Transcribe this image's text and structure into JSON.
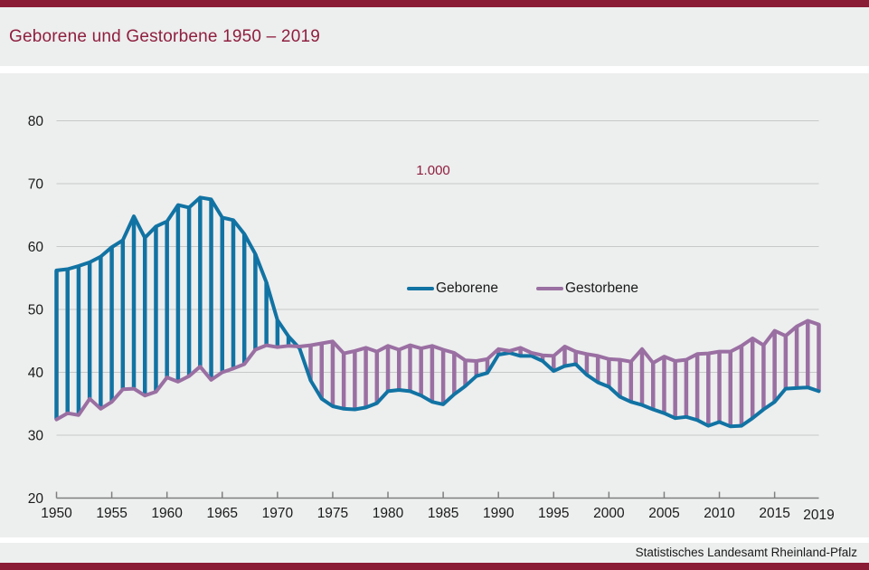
{
  "header": {
    "title": "Geborene und Gestorbene 1950 – 2019"
  },
  "footer": {
    "source": "Statistisches Landesamt Rheinland-Pfalz"
  },
  "colors": {
    "brand": "#8B1C35",
    "title_text": "#8E1F3F",
    "births_line": "#1173A3",
    "deaths_line": "#9A6FA2",
    "panel_bg": "#EDEEEE",
    "grid": "#C7C8C8",
    "axis": "#7F7F7F",
    "tick_text": "#1A1A1A"
  },
  "chart_data": {
    "type": "line",
    "title": "Geborene und Gestorbene 1950 – 2019",
    "unit_label": "1.000",
    "xlabel": "",
    "ylabel": "",
    "ylim": [
      20,
      80
    ],
    "yticks": [
      20,
      30,
      40,
      50,
      60,
      70,
      80
    ],
    "xticks": [
      1950,
      1955,
      1960,
      1965,
      1970,
      1975,
      1980,
      1985,
      1990,
      1995,
      2000,
      2005,
      2010,
      2015
    ],
    "x_end_label": 2019,
    "grid": true,
    "legend_position": "top-center",
    "hatch_between_series": true,
    "x": [
      1950,
      1951,
      1952,
      1953,
      1954,
      1955,
      1956,
      1957,
      1958,
      1959,
      1960,
      1961,
      1962,
      1963,
      1964,
      1965,
      1966,
      1967,
      1968,
      1969,
      1970,
      1971,
      1972,
      1973,
      1974,
      1975,
      1976,
      1977,
      1978,
      1979,
      1980,
      1981,
      1982,
      1983,
      1984,
      1985,
      1986,
      1987,
      1988,
      1989,
      1990,
      1991,
      1992,
      1993,
      1994,
      1995,
      1996,
      1997,
      1998,
      1999,
      2000,
      2001,
      2002,
      2003,
      2004,
      2005,
      2006,
      2007,
      2008,
      2009,
      2010,
      2011,
      2012,
      2013,
      2014,
      2015,
      2016,
      2017,
      2018,
      2019
    ],
    "series": [
      {
        "name": "Geborene",
        "color": "#1173A3",
        "values": [
          56.2,
          56.4,
          56.9,
          57.5,
          58.4,
          59.9,
          61.0,
          64.8,
          61.4,
          63.2,
          64.0,
          66.6,
          66.2,
          67.8,
          67.5,
          64.6,
          64.2,
          62.0,
          58.8,
          54.3,
          48.3,
          45.7,
          43.8,
          38.7,
          35.8,
          34.6,
          34.2,
          34.1,
          34.4,
          35.1,
          37.0,
          37.2,
          37.0,
          36.3,
          35.3,
          34.9,
          36.5,
          37.8,
          39.4,
          39.9,
          42.8,
          43.1,
          42.6,
          42.6,
          41.8,
          40.2,
          41.0,
          41.3,
          39.6,
          38.4,
          37.7,
          36.1,
          35.3,
          34.8,
          34.1,
          33.5,
          32.7,
          32.9,
          32.4,
          31.5,
          32.1,
          31.4,
          31.5,
          32.7,
          34.1,
          35.3,
          37.4,
          37.5,
          37.6,
          37.0
        ]
      },
      {
        "name": "Gestorbene",
        "color": "#9A6FA2",
        "values": [
          32.5,
          33.5,
          33.2,
          35.8,
          34.2,
          35.3,
          37.3,
          37.4,
          36.3,
          36.9,
          39.2,
          38.5,
          39.4,
          40.9,
          38.8,
          40.0,
          40.6,
          41.3,
          43.6,
          44.3,
          44.0,
          44.2,
          44.1,
          44.3,
          44.6,
          44.9,
          43.0,
          43.4,
          43.9,
          43.3,
          44.2,
          43.6,
          44.3,
          43.8,
          44.2,
          43.6,
          43.1,
          41.9,
          41.8,
          42.1,
          43.7,
          43.4,
          43.9,
          43.1,
          42.7,
          42.6,
          44.1,
          43.3,
          42.9,
          42.6,
          42.1,
          42.0,
          41.7,
          43.7,
          41.5,
          42.5,
          41.8,
          42.0,
          42.9,
          43.0,
          43.3,
          43.3,
          44.2,
          45.4,
          44.3,
          46.6,
          45.8,
          47.3,
          48.2,
          47.6
        ]
      }
    ]
  }
}
